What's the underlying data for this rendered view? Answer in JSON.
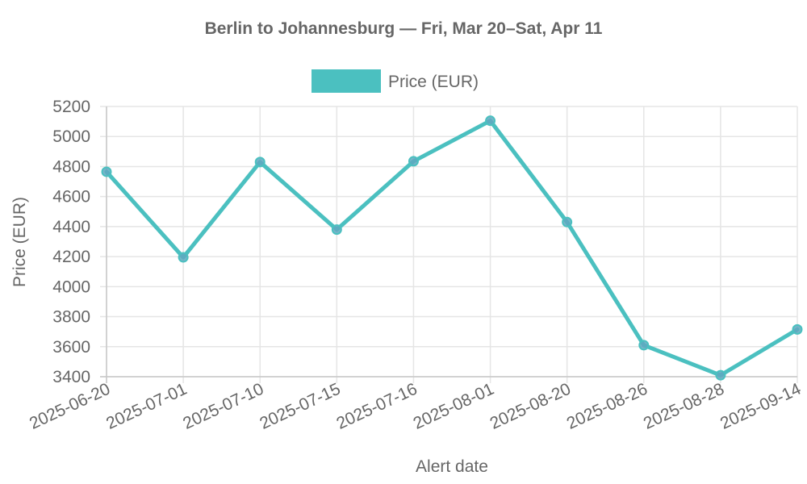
{
  "chart_data": {
    "type": "line",
    "title": "Berlin to Johannesburg — Fri, Mar 20–Sat, Apr 11",
    "xlabel": "Alert date",
    "ylabel": "Price (EUR)",
    "legend": {
      "position": "top",
      "entries": [
        "Price (EUR)"
      ]
    },
    "grid": true,
    "ylim": [
      3400,
      5200
    ],
    "yticks": [
      3400,
      3600,
      3800,
      4000,
      4200,
      4400,
      4600,
      4800,
      5000,
      5200
    ],
    "categories": [
      "2025-06-20",
      "2025-07-01",
      "2025-07-10",
      "2025-07-15",
      "2025-07-16",
      "2025-08-01",
      "2025-08-20",
      "2025-08-26",
      "2025-08-28",
      "2025-09-14"
    ],
    "series": [
      {
        "name": "Price (EUR)",
        "color": "#4bc0c0",
        "values": [
          4765,
          4195,
          4830,
          4380,
          4835,
          5105,
          4430,
          3610,
          3410,
          3715
        ]
      }
    ]
  },
  "colors": {
    "line": "#4bc0c0",
    "point": "#5fa8c0",
    "text": "#666666",
    "grid": "#e5e5e5"
  }
}
